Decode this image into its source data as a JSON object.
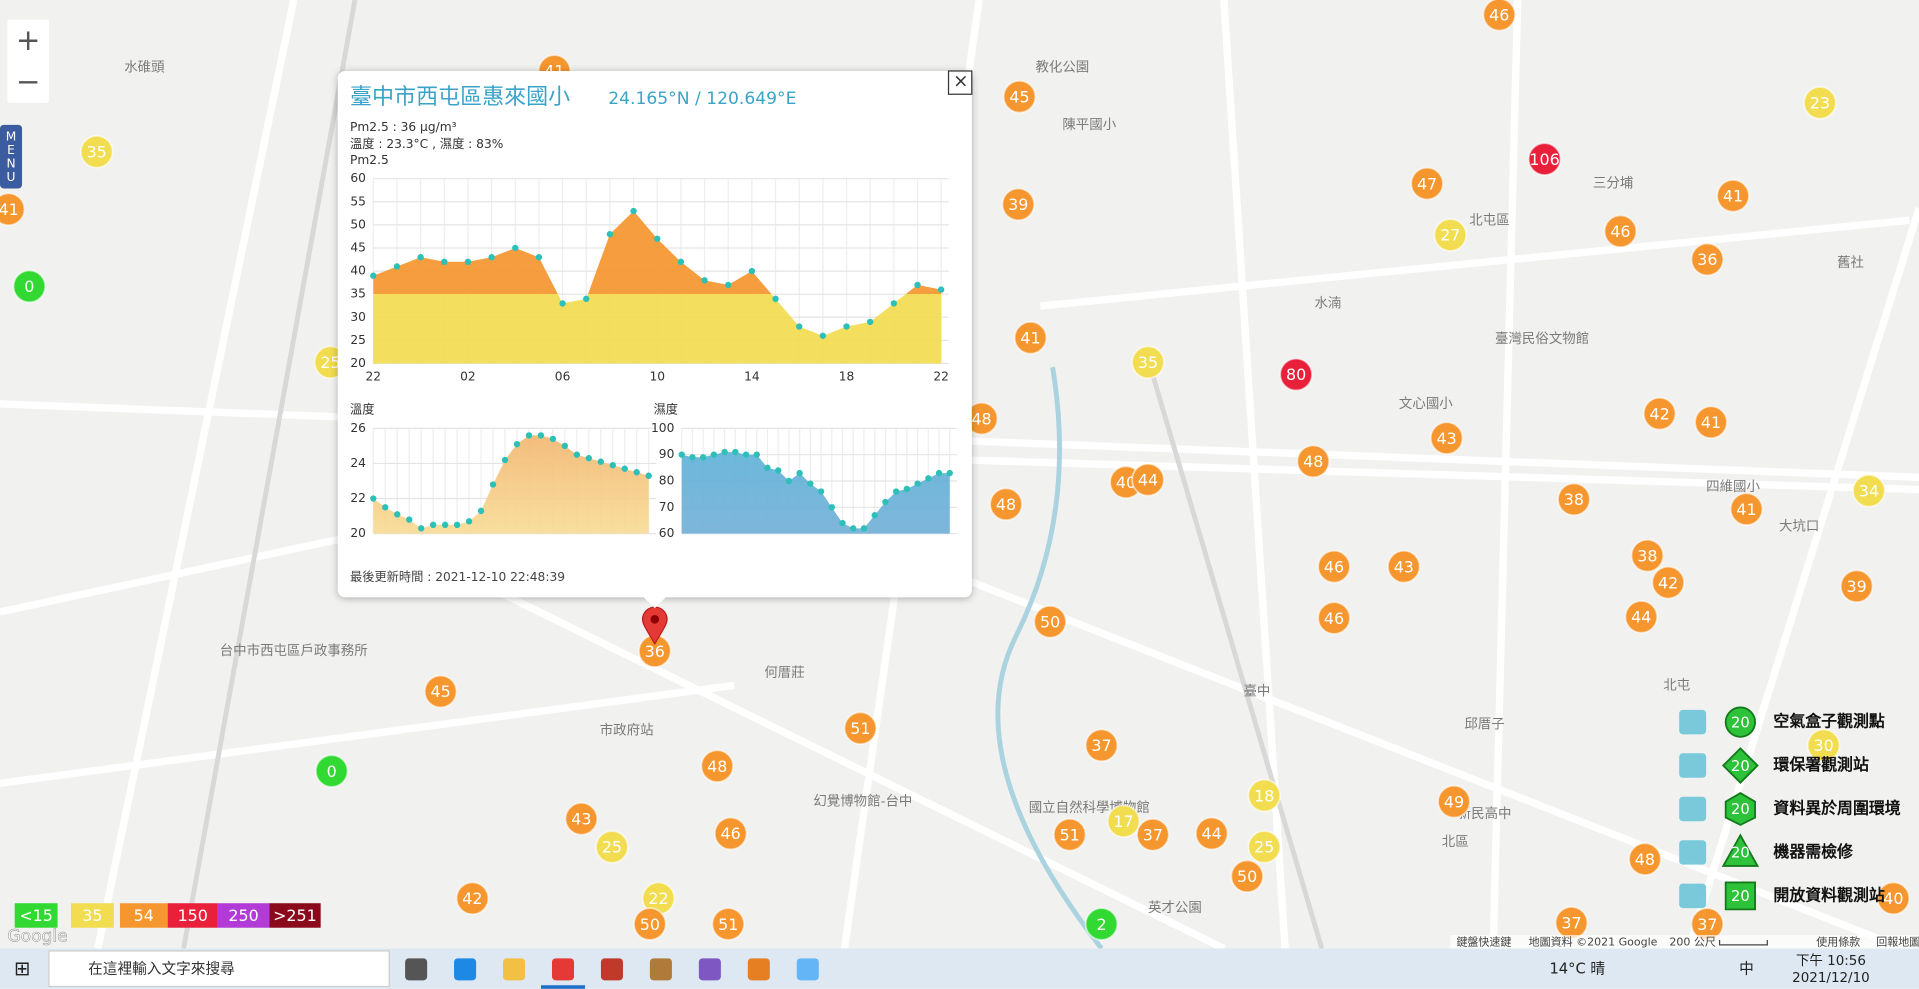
{
  "map": {
    "zoom_in": "+",
    "zoom_out": "−",
    "menu": "MENU",
    "place_labels": [
      "水碓頭",
      "教化公園",
      "陳平國小",
      "北屯區",
      "三分埔",
      "舊社",
      "文心國小",
      "四維國小",
      "大坑口",
      "何厝莊",
      "臺中",
      "邱厝子",
      "北屯",
      "北區",
      "新民高中",
      "英才公園",
      "幻覺博物館-台中",
      "國立自然科學博物館",
      "市政府站",
      "台中市西屯區戶政事務所",
      "臺灣民俗文物館",
      "水湳"
    ],
    "markers": [
      46,
      41,
      45,
      23,
      35,
      106,
      47,
      41,
      39,
      41,
      27,
      46,
      36,
      0,
      41,
      35,
      25,
      80,
      48,
      42,
      41,
      43,
      48,
      40,
      44,
      48,
      38,
      41,
      34,
      46,
      43,
      38,
      42,
      39,
      50,
      46,
      44,
      36,
      45,
      51,
      30,
      0,
      37,
      48,
      18,
      49,
      43,
      46,
      51,
      17,
      37,
      44,
      25,
      25,
      50,
      48,
      42,
      22,
      50,
      51,
      2,
      37,
      37,
      40
    ]
  },
  "aqi_legend": [
    {
      "value": 15,
      "label": "<15",
      "color": "#33d933"
    },
    {
      "value": 35,
      "label": "35",
      "color": "#f2dc4f"
    },
    {
      "value": 54,
      "label": "54",
      "color": "#f5962e"
    },
    {
      "value": 150,
      "label": "150",
      "color": "#e8203a"
    },
    {
      "value": 250,
      "label": "250",
      "color": "#b23ad6"
    },
    {
      "value": 251,
      "label": ">251",
      "color": "#8a0a1c"
    }
  ],
  "popup": {
    "title": "臺中市西屯區惠來國小",
    "coords": "24.165°N / 120.649°E",
    "pm25_line": "Pm2.5 : 36 μg/m³",
    "weather_line": "溫度 : 23.3°C , 濕度 : 83%",
    "close": "×",
    "updated": "最後更新時間 : 2021-12-10 22:48:39",
    "charts": [
      {
        "type": "area",
        "title": "Pm2.5",
        "categories": [
          "22",
          null,
          null,
          null,
          "02",
          null,
          null,
          null,
          "06",
          null,
          null,
          null,
          "10",
          null,
          null,
          null,
          "14",
          null,
          null,
          null,
          "18",
          null,
          null,
          null,
          "22"
        ],
        "values": [
          39,
          41,
          43,
          42,
          42,
          43,
          45,
          43,
          33,
          34,
          48,
          53,
          47,
          42,
          38,
          37,
          40,
          34,
          28,
          26,
          28,
          29,
          33,
          37,
          36
        ],
        "ylim": [
          20,
          60
        ],
        "yticks": [
          20,
          25,
          30,
          35,
          40,
          45,
          50,
          55,
          60
        ],
        "color": "#2cc0b8"
      },
      {
        "type": "area",
        "title": "溫度",
        "values": [
          22,
          21.5,
          21.1,
          20.8,
          20.3,
          20.5,
          20.5,
          20.5,
          20.7,
          21.3,
          22.8,
          24.2,
          25.1,
          25.6,
          25.6,
          25.4,
          25,
          24.5,
          24.3,
          24.1,
          23.9,
          23.7,
          23.5,
          23.3
        ],
        "ylim": [
          20,
          26
        ],
        "yticks": [
          20,
          22,
          24,
          26
        ],
        "color": "#f2b46e"
      },
      {
        "type": "area",
        "title": "濕度",
        "values": [
          90,
          89,
          89,
          90,
          91,
          91,
          90,
          90,
          85,
          84,
          80,
          83,
          79,
          76,
          70,
          64,
          62,
          62,
          67,
          72,
          76,
          77,
          79,
          81,
          83,
          83
        ],
        "ylim": [
          60,
          100
        ],
        "yticks": [
          60,
          70,
          80,
          90,
          100
        ],
        "color": "#5ab2d8"
      }
    ]
  },
  "station_legend": [
    {
      "badge": "20",
      "label": "空氣盒子觀測點"
    },
    {
      "badge": "20",
      "label": "環保署觀測站"
    },
    {
      "badge": "20",
      "label": "資料異於周圍環境"
    },
    {
      "badge": "20",
      "label": "機器需檢修"
    },
    {
      "badge": "20",
      "label": "開放資料觀測站"
    }
  ],
  "credits": [
    "鍵盤快速鍵",
    "地圖資料 ©2021 Google",
    "200 公尺",
    "使用條款",
    "回報地圖錯誤"
  ],
  "google": "Google",
  "taskbar": {
    "search": "在這裡輸入文字來搜尋",
    "weather": "14°C 晴",
    "ime": "中",
    "time": "下午 10:56",
    "date": "2021/12/10"
  }
}
